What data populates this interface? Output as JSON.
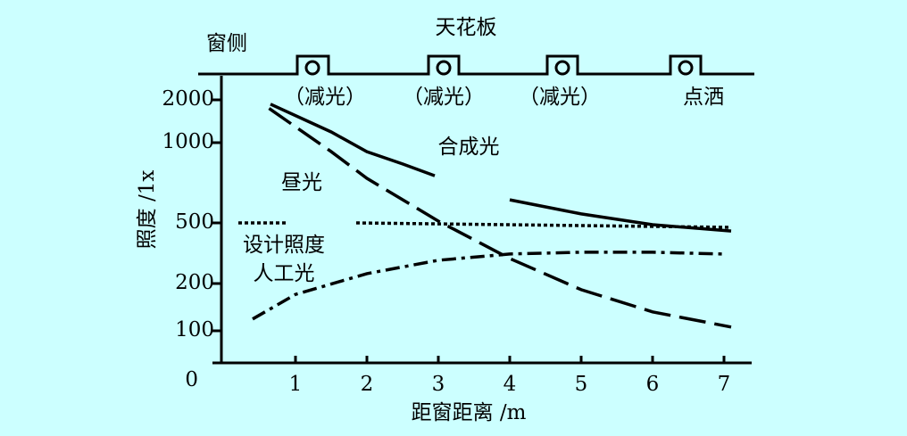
{
  "chart_data": {
    "type": "line",
    "title": "天花板",
    "window_label": "窗侧",
    "lamp_labels": [
      "（减光）",
      "（减光）",
      "（减光）",
      "点洒"
    ],
    "xlabel": "距窗距离 /m",
    "ylabel": "照度 /1x",
    "xlim": [
      0,
      7.4
    ],
    "xticks": [
      1,
      2,
      3,
      4,
      5,
      6,
      7
    ],
    "yticks": [
      0,
      100,
      200,
      500,
      1000,
      2000
    ],
    "series": [
      {
        "name": "合成光",
        "color": "#000000",
        "style": "solid",
        "x": [
          0.65,
          1.5,
          2,
          2.5,
          2.95,
          3.5,
          4,
          5,
          6,
          7.1
        ],
        "values": [
          1900,
          1250,
          944,
          867,
          794,
          null,
          644,
          556,
          491,
          460
        ]
      },
      {
        "name": "昼光",
        "color": "#000000",
        "style": "dashed",
        "x": [
          0.63,
          1.5,
          2,
          3,
          4,
          5,
          6,
          7.1
        ],
        "values": [
          1800,
          944,
          778,
          511,
          324,
          187,
          140,
          108
        ]
      },
      {
        "name": "设计照度",
        "color": "#000000",
        "style": "dotted",
        "x": [
          0.2,
          0.9,
          1.5,
          1.85,
          7.1
        ],
        "values": [
          500,
          500,
          null,
          500,
          478
        ]
      },
      {
        "name": "人工光",
        "color": "#000000",
        "style": "dashdot",
        "x": [
          0.4,
          1,
          2,
          3,
          4,
          5,
          6,
          7
        ],
        "values": [
          125,
          177,
          249,
          315,
          346,
          355,
          355,
          346
        ]
      }
    ]
  }
}
